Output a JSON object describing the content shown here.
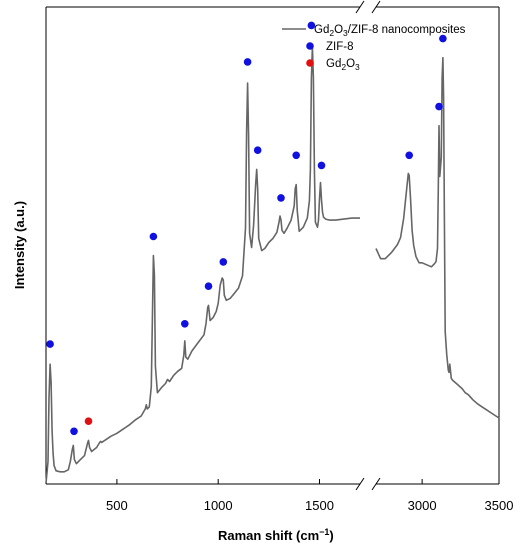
{
  "chart_data": {
    "type": "line",
    "xlabel": "Raman shift (cm",
    "xlabel_sup": "−1",
    "xlabel_close": ")",
    "ylabel": "Intensity (a.u.)",
    "axis_break": "between 1700 and 2700 cm−1 (marked by // on top and bottom axes)",
    "x_segments": [
      {
        "range": [
          150,
          1700
        ],
        "ticks": [
          500,
          1000,
          1500
        ],
        "tick_labels": [
          "500",
          "1000",
          "1500"
        ]
      },
      {
        "range": [
          2700,
          3500
        ],
        "ticks": [
          3000,
          3500
        ],
        "tick_labels": [
          "3000",
          "3500"
        ]
      }
    ],
    "y_ticks": "none",
    "legend": {
      "placement": "top-right",
      "entries": [
        {
          "label_parts": [
            "Gd",
            "2",
            "O",
            "3",
            "/ZIF-8 nanocomposites"
          ],
          "marker": "line",
          "color": "#666666"
        },
        {
          "label_parts": [
            "ZIF-8"
          ],
          "marker": "dot",
          "color": "#1010e0"
        },
        {
          "label_parts": [
            "Gd",
            "2",
            "O",
            "3"
          ],
          "marker": "dot",
          "color": "#e01010"
        }
      ]
    },
    "series": [
      {
        "name": "Gd2O3/ZIF-8 nanocomposites",
        "color": "#666666",
        "segment1_x": [
          150,
          160,
          165,
          170,
          175,
          180,
          185,
          190,
          200,
          220,
          240,
          260,
          270,
          280,
          285,
          290,
          300,
          320,
          340,
          355,
          360,
          365,
          375,
          400,
          415,
          420,
          425,
          440,
          470,
          500,
          530,
          560,
          590,
          620,
          640,
          645,
          650,
          660,
          670,
          680,
          685,
          690,
          700,
          720,
          740,
          750,
          760,
          780,
          800,
          820,
          830,
          835,
          840,
          850,
          870,
          900,
          930,
          940,
          948,
          952,
          960,
          975,
          990,
          1000,
          1010,
          1020,
          1025,
          1030,
          1040,
          1060,
          1080,
          1100,
          1120,
          1135,
          1140,
          1145,
          1150,
          1155,
          1165,
          1175,
          1185,
          1190,
          1195,
          1200,
          1215,
          1230,
          1250,
          1270,
          1290,
          1300,
          1305,
          1310,
          1315,
          1325,
          1340,
          1360,
          1375,
          1380,
          1385,
          1390,
          1400,
          1420,
          1440,
          1450,
          1455,
          1460,
          1465,
          1470,
          1475,
          1480,
          1490,
          1495,
          1500,
          1505,
          1510,
          1515,
          1520,
          1530,
          1550,
          1580,
          1620,
          1660,
          1700
        ],
        "segment1_y": [
          1,
          22,
          85,
          118,
          100,
          52,
          30,
          18,
          13,
          12,
          12,
          14,
          22,
          34,
          38,
          24,
          20,
          24,
          28,
          40,
          43,
          36,
          32,
          36,
          41,
          42,
          41,
          43,
          47,
          50,
          54,
          58,
          63,
          67,
          74,
          78,
          74,
          76,
          96,
          225,
          206,
          116,
          90,
          95,
          99,
          103,
          101,
          107,
          111,
          114,
          127,
          141,
          125,
          123,
          131,
          139,
          147,
          158,
          174,
          176,
          161,
          164,
          170,
          178,
          196,
          203,
          201,
          186,
          181,
          183,
          188,
          193,
          205,
          252,
          347,
          395,
          342,
          247,
          233,
          255,
          296,
          310,
          290,
          242,
          230,
          232,
          238,
          242,
          248,
          258,
          264,
          260,
          250,
          247,
          252,
          260,
          274,
          291,
          295,
          270,
          249,
          253,
          262,
          279,
          310,
          400,
          431,
          400,
          310,
          258,
          253,
          260,
          281,
          297,
          280,
          268,
          263,
          261,
          260,
          260,
          261,
          262,
          262,
          263
        ]
      },
      {
        "name": "Gd2O3/ZIF-8 nanocomposites",
        "color": "#666666",
        "segment2_x": [
          2700,
          2730,
          2760,
          2800,
          2840,
          2860,
          2880,
          2900,
          2910,
          2916,
          2925,
          2935,
          2945,
          2960,
          2980,
          3000,
          3030,
          3060,
          3080,
          3090,
          3100,
          3105,
          3110,
          3115,
          3125,
          3130,
          3135,
          3140,
          3145,
          3150,
          3160,
          3170,
          3175,
          3180,
          3190,
          3200,
          3230,
          3260,
          3280,
          3300,
          3330,
          3360,
          3390,
          3420,
          3450,
          3480,
          3500
        ],
        "segment2_y": [
          232,
          222,
          222,
          228,
          236,
          243,
          262,
          292,
          306,
          304,
          280,
          250,
          235,
          224,
          218,
          218,
          216,
          214,
          217,
          219,
          232,
          292,
          353,
          303,
          322,
          400,
          420,
          380,
          260,
          150,
          128,
          112,
          110,
          118,
          104,
          102,
          98,
          94,
          90,
          88,
          83,
          79,
          76,
          73,
          70,
          67,
          65
        ]
      }
    ],
    "markers": {
      "ZIF-8": [
        {
          "x": 170,
          "y": 130
        },
        {
          "x": 288,
          "y": 44
        },
        {
          "x": 680,
          "y": 236
        },
        {
          "x": 835,
          "y": 150
        },
        {
          "x": 952,
          "y": 187
        },
        {
          "x": 1025,
          "y": 211
        },
        {
          "x": 1145,
          "y": 408
        },
        {
          "x": 1195,
          "y": 321
        },
        {
          "x": 1310,
          "y": 274
        },
        {
          "x": 1385,
          "y": 316
        },
        {
          "x": 1460,
          "y": 444
        },
        {
          "x": 1510,
          "y": 306
        },
        {
          "x": 2916,
          "y": 316
        },
        {
          "x": 3110,
          "y": 364
        },
        {
          "x": 3135,
          "y": 431
        }
      ],
      "Gd2O3": [
        {
          "x": 360,
          "y": 54
        }
      ]
    },
    "ylim": [
      0,
      470
    ]
  }
}
